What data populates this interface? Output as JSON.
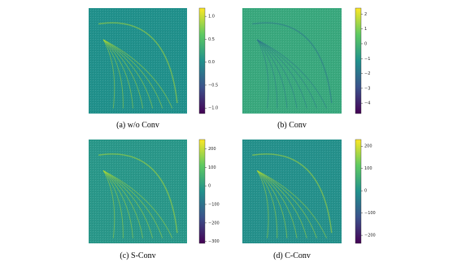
{
  "panels": [
    {
      "caption": "(a) w/o Conv",
      "range": [
        -1.12,
        1.18
      ],
      "ticks": [
        {
          "value": 1,
          "label": "1.0"
        },
        0.5,
        {
          "value": 0,
          "label": "0.0"
        },
        {
          "value": -0.5,
          "label": "−0.5"
        },
        {
          "value": -1,
          "label": "−1.0"
        }
      ]
    },
    {
      "caption": "(b) Conv",
      "range": [
        -4.7,
        2.4
      ],
      "ticks": [
        2,
        1,
        0,
        {
          "value": -1,
          "label": "−1"
        },
        {
          "value": -2,
          "label": "−2"
        },
        {
          "value": -3,
          "label": "−3"
        },
        {
          "value": -4,
          "label": "−4"
        }
      ]
    },
    {
      "caption": "(c) S-Conv",
      "range": [
        -310,
        250
      ],
      "ticks": [
        200,
        100,
        0,
        {
          "value": -100,
          "label": "−100"
        },
        {
          "value": -200,
          "label": "−200"
        },
        {
          "value": -300,
          "label": "−300"
        }
      ]
    },
    {
      "caption": "(d) C-Conv",
      "range": [
        -236,
        230
      ],
      "ticks": [
        200,
        100,
        0,
        {
          "value": -100,
          "label": "−100"
        },
        {
          "value": -200,
          "label": "−200"
        }
      ]
    }
  ]
}
